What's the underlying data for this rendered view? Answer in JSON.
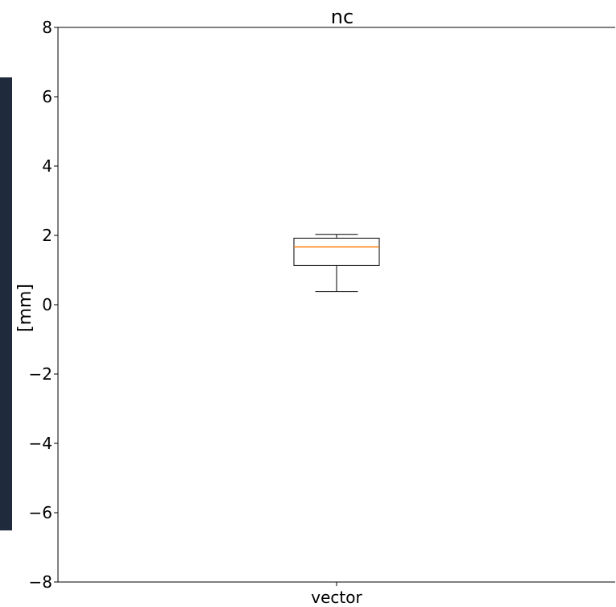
{
  "colors": {
    "side_strip": "#202a3d",
    "median": "#ff7f0e",
    "box_stroke": "#000000",
    "axes": "#000000"
  },
  "chart_data": {
    "type": "box",
    "title": "nc",
    "xlabel": "",
    "ylabel": "[mm]",
    "categories": [
      "vector"
    ],
    "ylim": [
      -8,
      8
    ],
    "yticks": [
      -8,
      -6,
      -4,
      -2,
      0,
      2,
      4,
      6,
      8
    ],
    "ytick_labels": [
      "−8",
      "−6",
      "−4",
      "−2",
      "0",
      "2",
      "4",
      "6",
      "8"
    ],
    "grid": false,
    "boxes": [
      {
        "category": "vector",
        "whisker_low": 0.38,
        "q1": 1.13,
        "median": 1.67,
        "q3": 1.92,
        "whisker_high": 2.03
      }
    ]
  }
}
